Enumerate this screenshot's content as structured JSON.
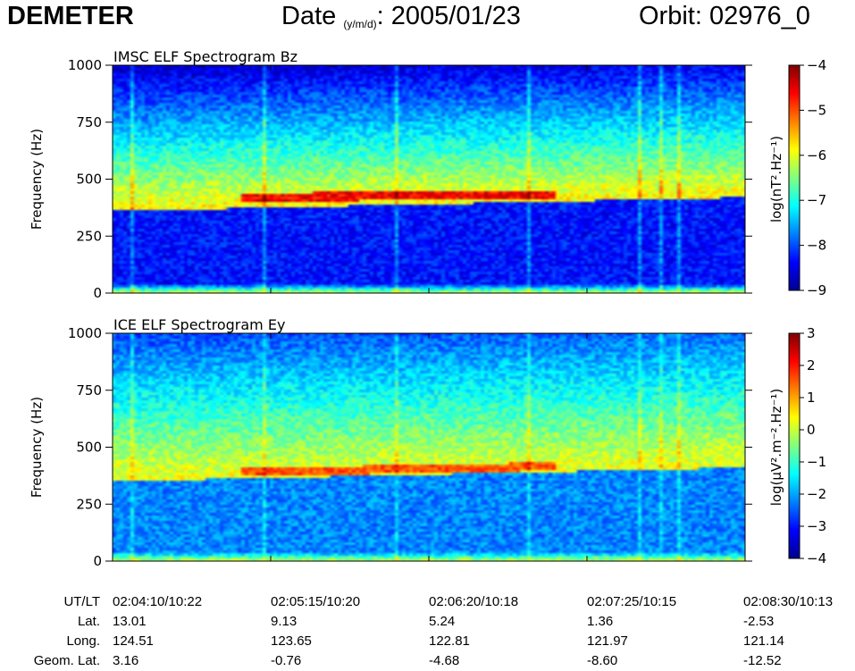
{
  "header": {
    "mission": "DEMETER",
    "date_label": "Date",
    "date_format": "(y/m/d)",
    "date_sep": ":",
    "date_value": "2005/01/23",
    "orbit": "Orbit: 02976_0"
  },
  "colors": {
    "scale": [
      "#00008f",
      "#0000ff",
      "#0080ff",
      "#00ffff",
      "#80ff80",
      "#ffff00",
      "#ff8000",
      "#ff0000",
      "#800000"
    ],
    "axis": "#000000",
    "background": "#ffffff"
  },
  "chart_data": [
    {
      "type": "heatmap",
      "title": "IMSC ELF Spectrogram Bz",
      "xlabel": "",
      "ylabel": "Frequency (Hz)",
      "ylim": [
        0,
        1000
      ],
      "yticks": [
        0,
        250,
        500,
        750,
        1000
      ],
      "xlim": [
        "02:04:10",
        "02:08:30"
      ],
      "colorbar": {
        "label": "log(nT².Hz⁻¹)",
        "range": [
          -9,
          -4
        ],
        "ticks": [
          -4,
          -5,
          -6,
          -7,
          -8,
          -9
        ]
      },
      "features": {
        "band_lower_edge_hz": [
          360,
          420
        ],
        "band_peak_hz": [
          420,
          430
        ],
        "low_level": -8.3,
        "band_level": -5.8,
        "peak_level": -4.6
      }
    },
    {
      "type": "heatmap",
      "title": "ICE ELF Spectrogram Ey",
      "xlabel": "",
      "ylabel": "Frequency (Hz)",
      "ylim": [
        0,
        1000
      ],
      "yticks": [
        0,
        250,
        500,
        750,
        1000
      ],
      "xlim": [
        "02:04:10",
        "02:08:30"
      ],
      "colorbar": {
        "label": "log(μV².m⁻².Hz⁻¹)",
        "range": [
          -4,
          3
        ],
        "ticks": [
          3,
          2,
          1,
          0,
          -1,
          -2,
          -3,
          -4
        ]
      },
      "features": {
        "band_lower_edge_hz": [
          350,
          410
        ],
        "band_peak_hz": [
          380,
          430
        ],
        "low_level": -2.2,
        "band_level": 0.3,
        "peak_level": 1.6
      }
    }
  ],
  "footer": {
    "row_labels": [
      "UT/LT",
      "Lat.",
      "Long.",
      "Geom. Lat."
    ],
    "columns": [
      {
        "ut_lt": "02:04:10/10:22",
        "lat": "13.01",
        "long": "124.51",
        "geom_lat": "3.16"
      },
      {
        "ut_lt": "02:05:15/10:20",
        "lat": "9.13",
        "long": "123.65",
        "geom_lat": "-0.76"
      },
      {
        "ut_lt": "02:06:20/10:18",
        "lat": "5.24",
        "long": "122.81",
        "geom_lat": "-4.68"
      },
      {
        "ut_lt": "02:07:25/10:15",
        "lat": "1.36",
        "long": "121.97",
        "geom_lat": "-8.60"
      },
      {
        "ut_lt": "02:08:30/10:13",
        "lat": "-2.53",
        "long": "121.14",
        "geom_lat": "-12.52"
      }
    ]
  }
}
